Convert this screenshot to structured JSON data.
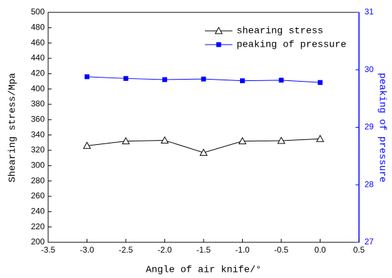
{
  "chart_data": {
    "type": "line",
    "xlabel": "Angle of air knife/°",
    "ylabel": "Shearing stress/Mpa",
    "y2label": "peaking of pressure",
    "x": [
      -3.0,
      -2.5,
      -2.0,
      -1.5,
      -1.0,
      -0.5,
      0.0
    ],
    "series": [
      {
        "name": "shearing stress",
        "color": "#000000",
        "marker": "open-triangle",
        "values": [
          326,
          332,
          333,
          317,
          332,
          332.5,
          335
        ]
      },
      {
        "name": "peaking of pressure",
        "color": "#0000ff",
        "marker": "filled-square",
        "axis": "y2",
        "values": [
          29.88,
          29.85,
          29.83,
          29.84,
          29.81,
          29.82,
          29.78
        ]
      }
    ],
    "xlim": [
      -3.5,
      0.5
    ],
    "xticks": [
      -3.5,
      {
        "value": -3.0,
        "label": "-3.0"
      },
      -2.5,
      {
        "value": -2.0,
        "label": "-2.0"
      },
      -1.5,
      {
        "value": -1.0,
        "label": "-1.0"
      },
      -0.5,
      {
        "value": 0.0,
        "label": "0.0"
      },
      0.5
    ],
    "ylim": [
      200,
      500
    ],
    "yticks": [
      200,
      220,
      240,
      260,
      280,
      300,
      320,
      340,
      360,
      380,
      400,
      420,
      440,
      460,
      480,
      500
    ],
    "y2lim": [
      27,
      31
    ],
    "y2ticks": [
      27,
      28,
      29,
      30,
      31
    ],
    "y2color": "#0000ff",
    "legend": "upper right"
  }
}
